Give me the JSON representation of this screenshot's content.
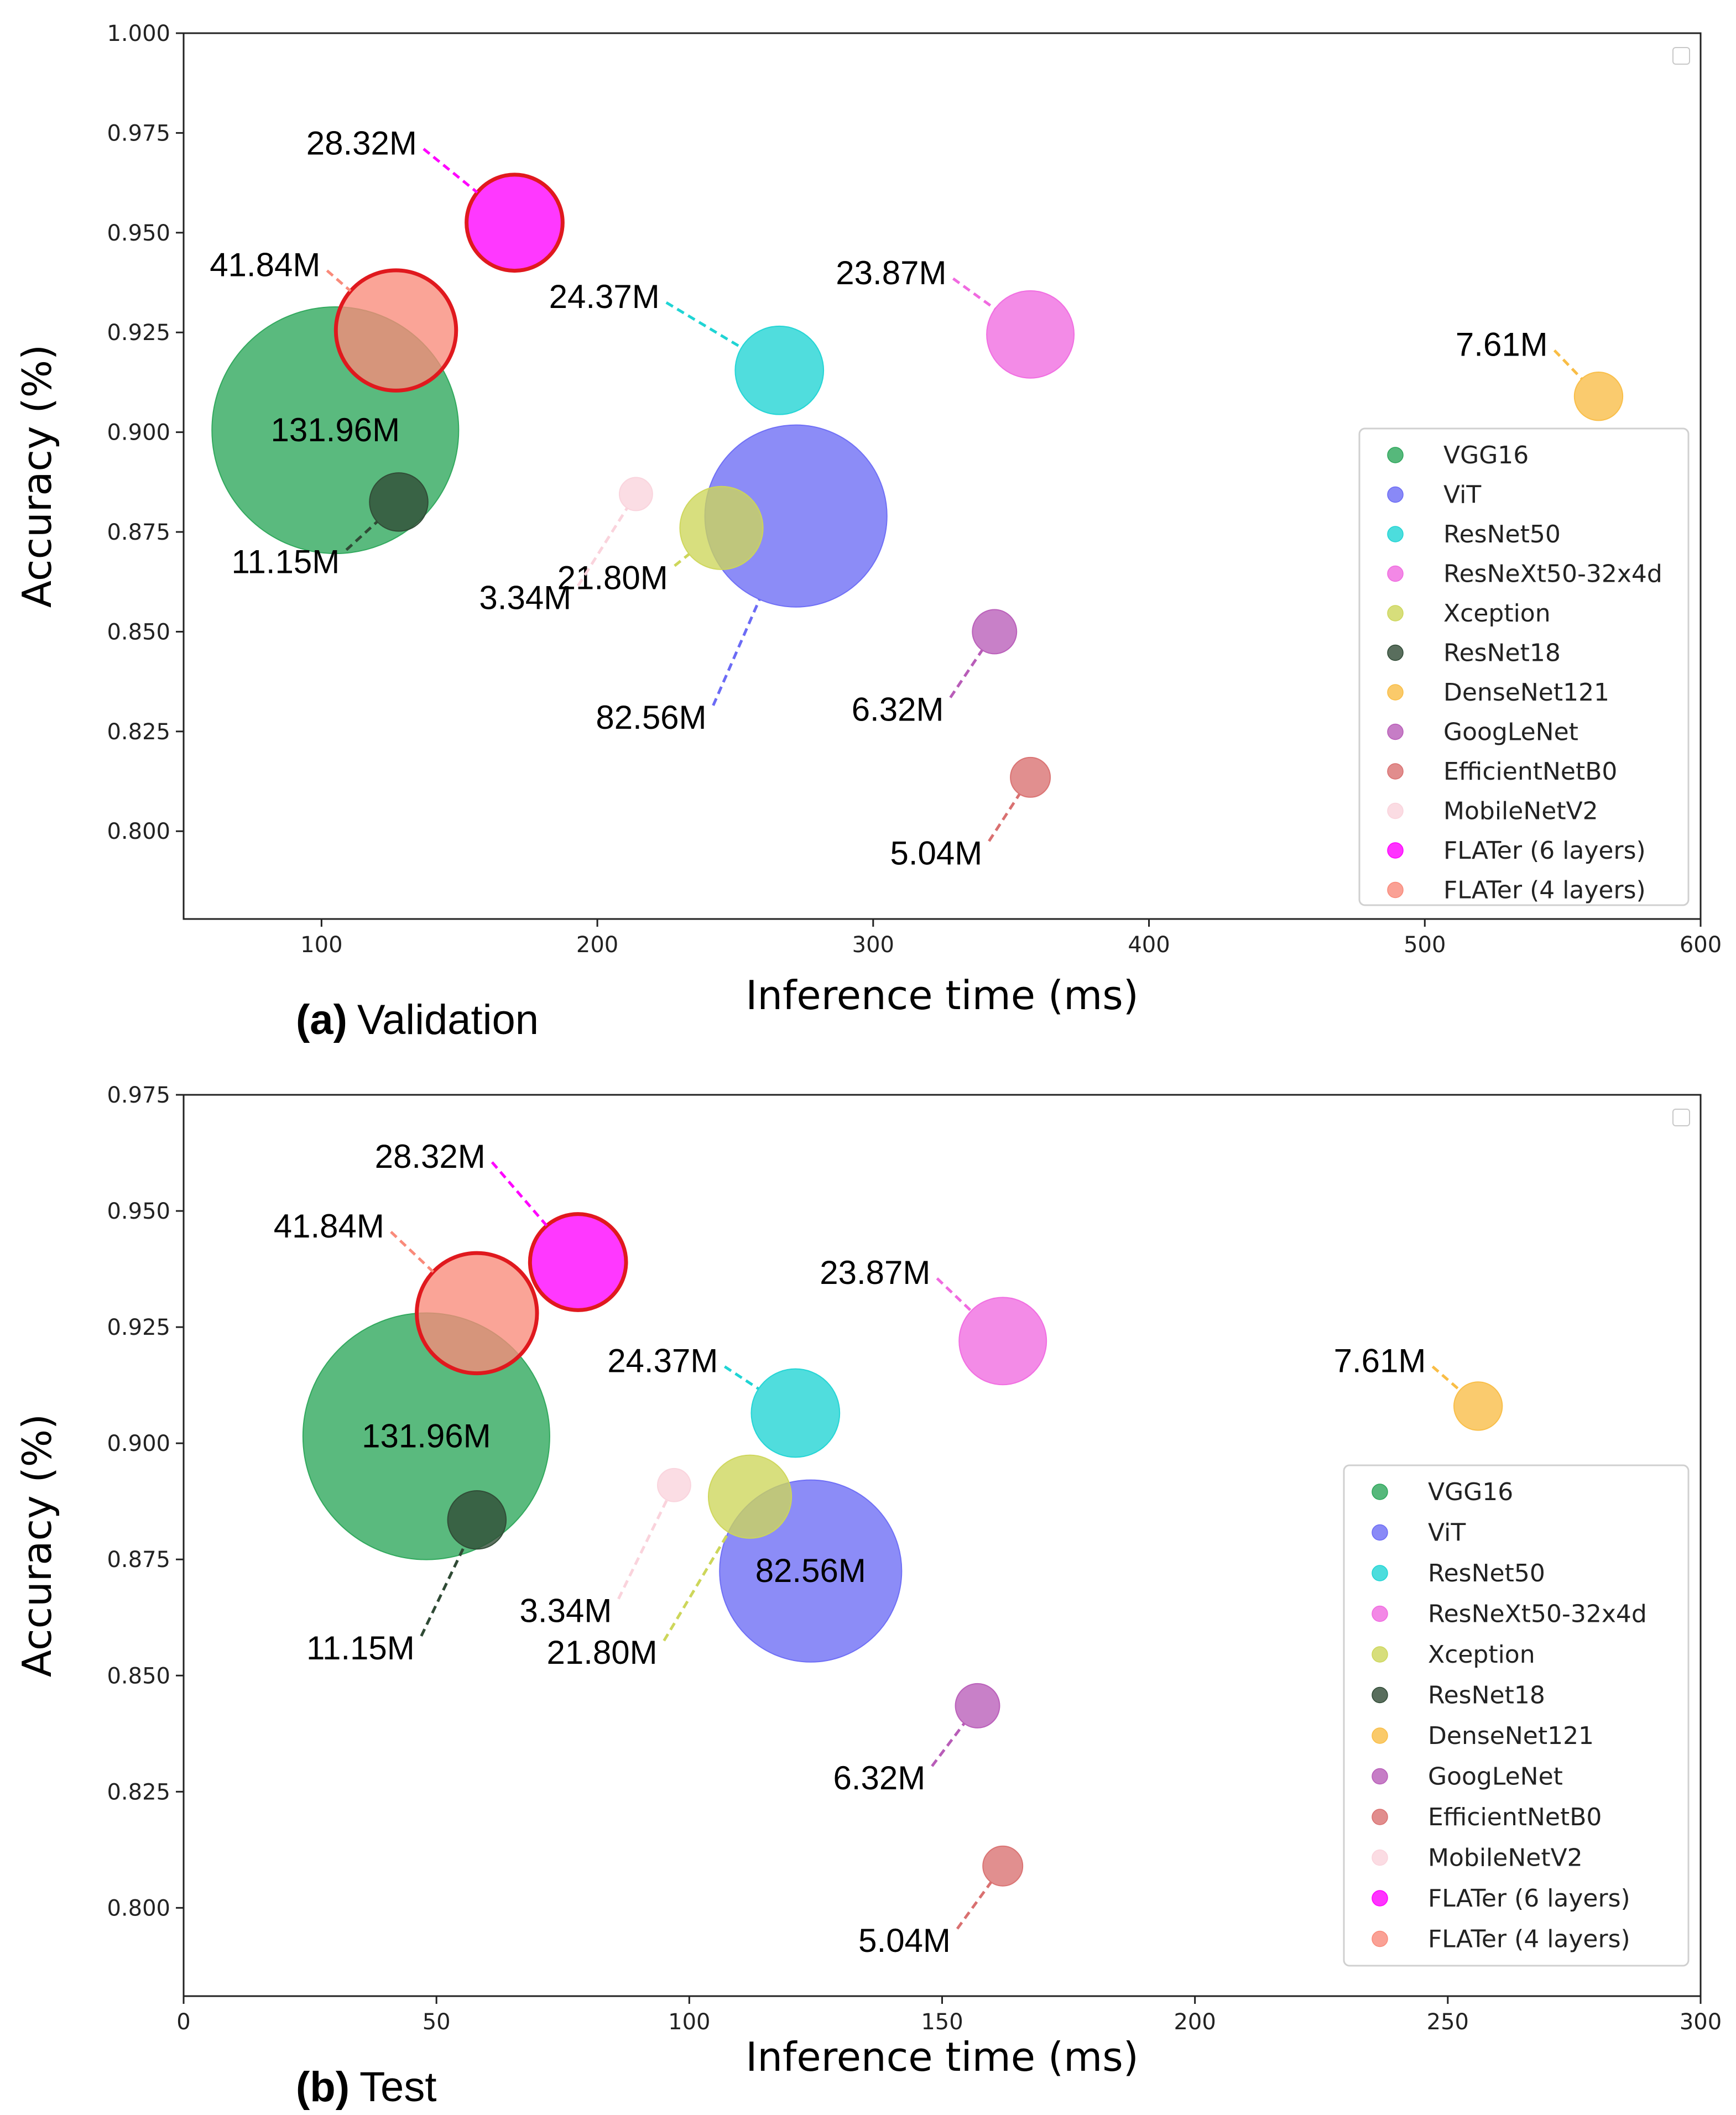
{
  "chart_data": [
    {
      "type": "scatter",
      "panel_label": "(a)",
      "panel_name": "Validation",
      "xlabel": "Inference time (ms)",
      "ylabel": "Accuracy (%)",
      "xlim": [
        50,
        600
      ],
      "ylim": [
        0.778,
        1.0
      ],
      "xticks": [
        100,
        200,
        300,
        400,
        500,
        600
      ],
      "yticks": [
        "0.800",
        "0.825",
        "0.850",
        "0.875",
        "0.900",
        "0.925",
        "0.950",
        "0.975",
        "1.000"
      ],
      "legend_position": "center-right",
      "series": [
        {
          "name": "VGG16",
          "color": "#2ca65a",
          "x": 105,
          "y": 0.9005,
          "params_m": 131.96,
          "label": "131.96M",
          "label_inside": true
        },
        {
          "name": "ViT",
          "color": "#6b6bf5",
          "x": 272,
          "y": 0.879,
          "params_m": 82.56,
          "label": "82.56M",
          "lx": 242,
          "ly": 0.8315
        },
        {
          "name": "ResNet50",
          "color": "#1fd4d4",
          "x": 266,
          "y": 0.9155,
          "params_m": 24.37,
          "label": "24.37M",
          "lx": 225,
          "ly": 0.9325
        },
        {
          "name": "ResNeXt50-32x4d",
          "color": "#f06ae0",
          "x": 357,
          "y": 0.9245,
          "params_m": 23.87,
          "label": "23.87M",
          "lx": 329,
          "ly": 0.9385
        },
        {
          "name": "Xception",
          "color": "#cdd65a",
          "x": 245,
          "y": 0.876,
          "params_m": 21.8,
          "label": "21.80M",
          "lx": 228,
          "ly": 0.8665
        },
        {
          "name": "ResNet18",
          "color": "#2f4a35",
          "x": 128,
          "y": 0.8825,
          "params_m": 11.15,
          "label": "11.15M",
          "lx": 109,
          "ly": 0.8705
        },
        {
          "name": "DenseNet121",
          "color": "#f9bd45",
          "x": 563,
          "y": 0.909,
          "params_m": 7.61,
          "label": "7.61M",
          "lx": 547,
          "ly": 0.9205
        },
        {
          "name": "GoogLeNet",
          "color": "#b85cb8",
          "x": 344,
          "y": 0.85,
          "params_m": 6.32,
          "label": "6.32M",
          "lx": 328,
          "ly": 0.8335
        },
        {
          "name": "EfficientNetB0",
          "color": "#d97070",
          "x": 357,
          "y": 0.8135,
          "params_m": 5.04,
          "label": "5.04M",
          "lx": 342,
          "ly": 0.7975
        },
        {
          "name": "MobileNetV2",
          "color": "#fad3dc",
          "x": 214,
          "y": 0.8845,
          "params_m": 3.34,
          "label": "3.34M",
          "lx": 193,
          "ly": 0.8615
        },
        {
          "name": "FLATer (6 layers)",
          "color": "#ff00ff",
          "x": 170,
          "y": 0.9525,
          "params_m": 28.32,
          "label": "28.32M",
          "lx": 137,
          "ly": 0.971,
          "edge": "#e0191e"
        },
        {
          "name": "FLATer (4 layers)",
          "color": "#f98a7a",
          "x": 127,
          "y": 0.9255,
          "params_m": 41.84,
          "label": "41.84M",
          "lx": 102,
          "ly": 0.9405,
          "edge": "#e0191e"
        }
      ]
    },
    {
      "type": "scatter",
      "panel_label": "(b)",
      "panel_name": "Test",
      "xlabel": "Inference time (ms)",
      "ylabel": "Accuracy (%)",
      "xlim": [
        0,
        300
      ],
      "ylim": [
        0.781,
        0.975
      ],
      "xticks": [
        0,
        50,
        100,
        150,
        200,
        250,
        300
      ],
      "yticks": [
        "0.800",
        "0.825",
        "0.850",
        "0.875",
        "0.900",
        "0.925",
        "0.950",
        "0.975"
      ],
      "legend_position": "lower-right",
      "series": [
        {
          "name": "VGG16",
          "color": "#2ca65a",
          "x": 48,
          "y": 0.9015,
          "params_m": 131.96,
          "label": "131.96M",
          "label_inside": true
        },
        {
          "name": "ViT",
          "color": "#6b6bf5",
          "x": 124,
          "y": 0.8725,
          "params_m": 82.56,
          "label": "82.56M",
          "label_inside": true
        },
        {
          "name": "ResNet50",
          "color": "#1fd4d4",
          "x": 121,
          "y": 0.9065,
          "params_m": 24.37,
          "label": "24.37M",
          "lx": 107,
          "ly": 0.9165
        },
        {
          "name": "ResNeXt50-32x4d",
          "color": "#f06ae0",
          "x": 162,
          "y": 0.922,
          "params_m": 23.87,
          "label": "23.87M",
          "lx": 149,
          "ly": 0.9355
        },
        {
          "name": "Xception",
          "color": "#cdd65a",
          "x": 112,
          "y": 0.8885,
          "params_m": 21.8,
          "label": "21.80M",
          "lx": 95,
          "ly": 0.8575
        },
        {
          "name": "ResNet18",
          "color": "#2f4a35",
          "x": 58,
          "y": 0.8835,
          "params_m": 11.15,
          "label": "11.15M",
          "lx": 47,
          "ly": 0.8585
        },
        {
          "name": "DenseNet121",
          "color": "#f9bd45",
          "x": 256,
          "y": 0.908,
          "params_m": 7.61,
          "label": "7.61M",
          "lx": 247,
          "ly": 0.9165
        },
        {
          "name": "GoogLeNet",
          "color": "#b85cb8",
          "x": 157,
          "y": 0.8435,
          "params_m": 6.32,
          "label": "6.32M",
          "lx": 148,
          "ly": 0.8305
        },
        {
          "name": "EfficientNetB0",
          "color": "#d97070",
          "x": 162,
          "y": 0.809,
          "params_m": 5.04,
          "label": "5.04M",
          "lx": 153,
          "ly": 0.7955
        },
        {
          "name": "MobileNetV2",
          "color": "#fad3dc",
          "x": 97,
          "y": 0.891,
          "params_m": 3.34,
          "label": "3.34M",
          "lx": 86,
          "ly": 0.8665
        },
        {
          "name": "FLATer (6 layers)",
          "color": "#ff00ff",
          "x": 78,
          "y": 0.939,
          "params_m": 28.32,
          "label": "28.32M",
          "lx": 61,
          "ly": 0.9605,
          "edge": "#e0191e"
        },
        {
          "name": "FLATer (4 layers)",
          "color": "#f98a7a",
          "x": 58,
          "y": 0.928,
          "params_m": 41.84,
          "label": "41.84M",
          "lx": 41,
          "ly": 0.9455,
          "edge": "#e0191e"
        }
      ]
    }
  ]
}
